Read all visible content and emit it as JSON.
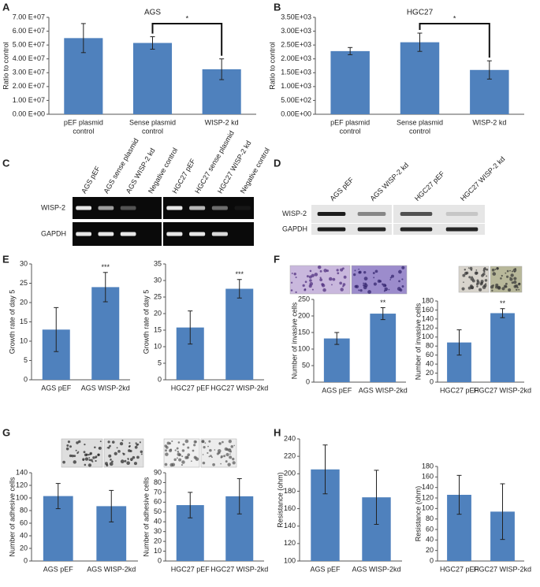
{
  "panel_labels": [
    "A",
    "B",
    "C",
    "D",
    "E",
    "F",
    "G",
    "H"
  ],
  "gels": [
    {
      "lanes": [
        "AGS pEF",
        "AGS sense plasmid",
        "AGS WISP-2 kd",
        "Negative control",
        "HGC27 pEF",
        "HGC27 sense plasmid",
        "HGC27 WISP-2 kd",
        "Negative control"
      ],
      "rows": [
        "WISP-2",
        "GAPDH"
      ]
    },
    {
      "lanes": [
        "AGS pEF",
        "AGS WISP-2 kd",
        "HGC27 pEF",
        "HGC27 WISP-2 kd"
      ],
      "rows": [
        "WISP-2",
        "GAPDH"
      ]
    }
  ],
  "chart_data": [
    {
      "type": "bar",
      "title": "AGS",
      "ylabel": "Ratio to control",
      "categories": [
        [
          "pEF plasmid",
          "control"
        ],
        [
          "Sense plasmid",
          "control"
        ],
        [
          "WISP-2 kd"
        ]
      ],
      "values": [
        55000000,
        51500000,
        32500000
      ],
      "errors": [
        10500000,
        4500000,
        7500000
      ],
      "color": "#4f81bd",
      "significance": [
        {
          "between": [
            1,
            2
          ],
          "label": "*"
        }
      ],
      "ylim": [
        0,
        70000000
      ],
      "yticks": [
        {
          "value": 0,
          "label": "0.00 E+00"
        },
        {
          "value": 10000000,
          "label": "1.00 E+07"
        },
        {
          "value": 20000000,
          "label": "2.00 E+07"
        },
        {
          "value": 30000000,
          "label": "3.00 E+07"
        },
        {
          "value": 40000000,
          "label": "4.00 E+07"
        },
        {
          "value": 50000000,
          "label": "5.00 E+07"
        },
        {
          "value": 60000000,
          "label": "6.00 E+07"
        },
        {
          "value": 70000000,
          "label": "7.00 E+07"
        }
      ]
    },
    {
      "type": "bar",
      "title": "HGC27",
      "ylabel": "Ratio to control",
      "categories": [
        [
          "pEF plasmid",
          "control"
        ],
        [
          "Sense plasmid",
          "control"
        ],
        [
          "WISP-2 kd"
        ]
      ],
      "values": [
        2280,
        2600,
        1600
      ],
      "errors": [
        130,
        330,
        330
      ],
      "color": "#4f81bd",
      "significance": [
        {
          "between": [
            1,
            2
          ],
          "label": "*"
        }
      ],
      "ylim": [
        0,
        3500
      ],
      "yticks": [
        {
          "value": 0,
          "label": "0.00E+00"
        },
        {
          "value": 500,
          "label": "5.00E+02"
        },
        {
          "value": 1000,
          "label": "1.00E+03"
        },
        {
          "value": 1500,
          "label": "1.50E+03"
        },
        {
          "value": 2000,
          "label": "2.00E+03"
        },
        {
          "value": 2500,
          "label": "2.50E+03"
        },
        {
          "value": 3000,
          "label": "3.00E+03"
        },
        {
          "value": 3500,
          "label": "3.50E+03"
        }
      ]
    },
    {
      "type": "bar",
      "ylabel": "Growth rate of day 5",
      "categories": [
        "AGS pEF",
        "AGS WISP-2kd"
      ],
      "values": [
        13,
        24
      ],
      "errors": [
        5.7,
        3.8
      ],
      "value_annotations": [
        null,
        "***"
      ],
      "color": "#4f81bd",
      "ylim": [
        0,
        30
      ],
      "yticks": [
        0,
        5,
        10,
        15,
        20,
        25,
        30
      ]
    },
    {
      "type": "bar",
      "ylabel": "Growth rate of day 5",
      "categories": [
        "HGC27 pEF",
        "HGC27 WISP-2kd"
      ],
      "values": [
        15.8,
        27.5
      ],
      "errors": [
        5,
        2.8
      ],
      "value_annotations": [
        null,
        "***"
      ],
      "color": "#4f81bd",
      "ylim": [
        0,
        35
      ],
      "yticks": [
        0,
        5,
        10,
        15,
        20,
        25,
        30,
        35
      ]
    },
    {
      "type": "bar",
      "ylabel": "Number of invasive cells",
      "categories": [
        "AGS pEF",
        "AGS WISP-2kd"
      ],
      "values": [
        132,
        207
      ],
      "errors": [
        18,
        18
      ],
      "value_annotations": [
        null,
        "**"
      ],
      "color": "#4f81bd",
      "ylim": [
        0,
        250
      ],
      "yticks": [
        0,
        50,
        100,
        150,
        200,
        250
      ]
    },
    {
      "type": "bar",
      "ylabel": "Number of invasive cells",
      "categories": [
        "HGC27 pEF",
        "HGC27 WISP-2kd"
      ],
      "values": [
        88,
        153
      ],
      "errors": [
        28,
        10
      ],
      "value_annotations": [
        null,
        "**"
      ],
      "color": "#4f81bd",
      "ylim": [
        0,
        180
      ],
      "yticks": [
        0,
        20,
        40,
        60,
        80,
        100,
        120,
        140,
        160,
        180
      ]
    },
    {
      "type": "bar",
      "ylabel": "Number of adhesive cells",
      "categories": [
        "AGS pEF",
        "AGS WISP-2kd"
      ],
      "values": [
        103,
        87
      ],
      "errors": [
        20,
        25
      ],
      "color": "#4f81bd",
      "ylim": [
        0,
        140
      ],
      "yticks": [
        0,
        20,
        40,
        60,
        80,
        100,
        120,
        140
      ]
    },
    {
      "type": "bar",
      "ylabel": "Number of adhesive cells",
      "categories": [
        "HGC27 pEF",
        "HGC27 WISP-2kd"
      ],
      "values": [
        57,
        66
      ],
      "errors": [
        13,
        18
      ],
      "color": "#4f81bd",
      "ylim": [
        0,
        90
      ],
      "yticks": [
        0,
        10,
        20,
        30,
        40,
        50,
        60,
        70,
        80,
        90
      ]
    },
    {
      "type": "bar",
      "ylabel": "Resistance (ohm)",
      "categories": [
        "AGS pEF",
        "AGS WISP-2kd"
      ],
      "values": [
        205,
        173
      ],
      "errors": [
        28,
        31
      ],
      "color": "#4f81bd",
      "ylim": [
        100,
        240
      ],
      "yticks": [
        100,
        120,
        140,
        160,
        180,
        200,
        220,
        240
      ]
    },
    {
      "type": "bar",
      "ylabel": "Resistance (ohm)",
      "categories": [
        "HGC27 pEF",
        "HGC27 WISP-2kd"
      ],
      "values": [
        126,
        94
      ],
      "errors": [
        37,
        53
      ],
      "color": "#4f81bd",
      "ylim": [
        0,
        180
      ],
      "yticks": [
        0,
        20,
        40,
        60,
        80,
        100,
        120,
        140,
        160,
        180
      ]
    }
  ]
}
